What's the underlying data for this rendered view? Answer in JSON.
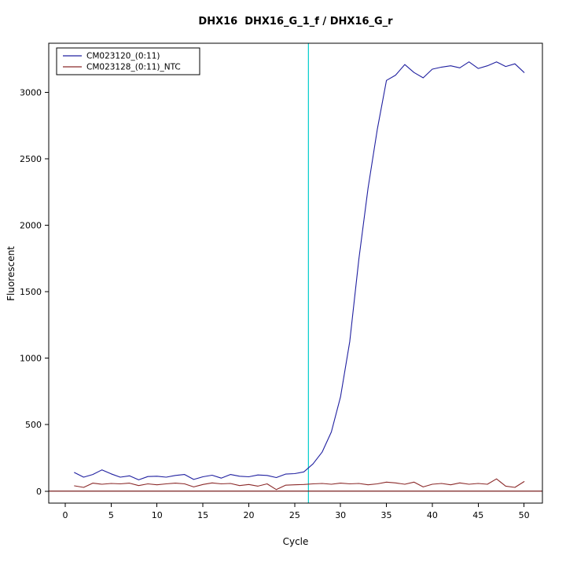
{
  "chart_data": {
    "type": "line",
    "title": "DHX16  DHX16_G_1_f / DHX16_G_r",
    "xlabel": "Cycle",
    "ylabel": "Fluorescent",
    "xlim": [
      -1.8,
      52
    ],
    "ylim": [
      -90,
      3370
    ],
    "x_ticks": [
      0,
      5,
      10,
      15,
      20,
      25,
      30,
      35,
      40,
      45,
      50
    ],
    "y_ticks": [
      0,
      500,
      1000,
      1500,
      2000,
      2500,
      3000
    ],
    "grid": false,
    "legend_position": "top-left",
    "x": [
      1,
      2,
      3,
      4,
      5,
      6,
      7,
      8,
      9,
      10,
      11,
      12,
      13,
      14,
      15,
      16,
      17,
      18,
      19,
      20,
      21,
      22,
      23,
      24,
      25,
      26,
      27,
      28,
      29,
      30,
      31,
      32,
      33,
      34,
      35,
      36,
      37,
      38,
      39,
      40,
      41,
      42,
      43,
      44,
      45,
      46,
      47,
      48,
      49,
      50
    ],
    "series": [
      {
        "name": "CM023120_(0:11)",
        "color": "#2020A0",
        "values": [
          140,
          105,
          125,
          160,
          130,
          105,
          115,
          85,
          110,
          112,
          105,
          118,
          125,
          88,
          108,
          120,
          98,
          125,
          112,
          108,
          122,
          118,
          102,
          128,
          132,
          145,
          205,
          295,
          445,
          710,
          1125,
          1745,
          2280,
          2720,
          3090,
          3130,
          3210,
          3150,
          3110,
          3175,
          3190,
          3200,
          3185,
          3230,
          3180,
          3200,
          3230,
          3195,
          3215,
          3150
        ]
      },
      {
        "name": "CM023128_(0:11)_NTC",
        "color": "#8B2A2A",
        "values": [
          40,
          28,
          60,
          52,
          58,
          55,
          60,
          42,
          55,
          48,
          55,
          60,
          55,
          32,
          50,
          62,
          55,
          58,
          42,
          50,
          38,
          55,
          12,
          45,
          48,
          50,
          55,
          58,
          52,
          60,
          55,
          58,
          48,
          55,
          68,
          62,
          52,
          68,
          32,
          52,
          58,
          48,
          62,
          52,
          58,
          52,
          92,
          38,
          28,
          72
        ]
      }
    ],
    "threshold_line": {
      "x": 26.5,
      "color": "#00CCCC"
    },
    "baseline": {
      "y": 0,
      "color": "#7A1F1F"
    },
    "axis_color": "#000000",
    "background_color": "#FFFFFF"
  }
}
